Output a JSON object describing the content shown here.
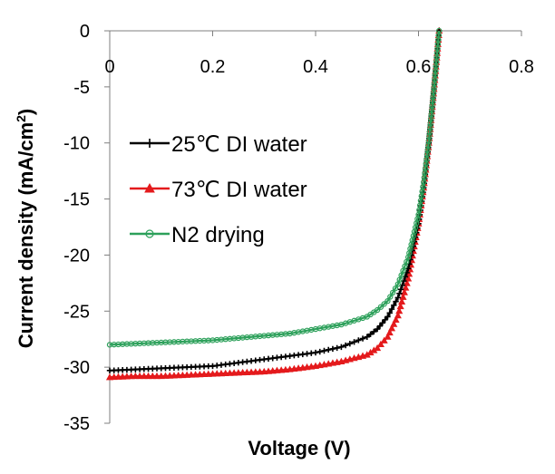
{
  "chart_data": {
    "type": "line",
    "title": "",
    "xlabel": "Voltage (V)",
    "ylabel_main": "Current density",
    "ylabel_unit": "(mA/cm",
    "ylabel_sup": "2",
    "ylabel_close": ")",
    "xlim": [
      0,
      0.8
    ],
    "ylim": [
      -35,
      0
    ],
    "x_ticks": [
      0,
      0.2,
      0.4,
      0.6,
      0.8
    ],
    "x_tick_labels": [
      "0",
      "0.2",
      "0.4",
      "0.6",
      "0.8"
    ],
    "y_ticks": [
      0,
      -5,
      -10,
      -15,
      -20,
      -25,
      -30,
      -35
    ],
    "y_tick_labels": [
      "0",
      "-5",
      "-10",
      "-15",
      "-20",
      "-25",
      "-30",
      "-35"
    ],
    "x_axis_position": "top",
    "grid": false,
    "legend_position": "center-left",
    "series": [
      {
        "name": "25℃ DI water",
        "color": "#000000",
        "marker": "plus",
        "x": [
          0,
          0.05,
          0.1,
          0.15,
          0.2,
          0.25,
          0.3,
          0.35,
          0.4,
          0.45,
          0.5,
          0.52,
          0.54,
          0.56,
          0.58,
          0.6,
          0.61,
          0.62,
          0.63,
          0.64
        ],
        "y": [
          -30.3,
          -30.2,
          -30.1,
          -30.0,
          -29.9,
          -29.6,
          -29.3,
          -29.0,
          -28.7,
          -28.2,
          -27.3,
          -26.6,
          -25.5,
          -23.8,
          -21.2,
          -17.2,
          -14.0,
          -10.0,
          -5.2,
          0
        ]
      },
      {
        "name": "73℃ DI water",
        "color": "#e41a1c",
        "marker": "triangle",
        "x": [
          0,
          0.05,
          0.1,
          0.15,
          0.2,
          0.25,
          0.3,
          0.35,
          0.4,
          0.45,
          0.5,
          0.52,
          0.54,
          0.56,
          0.58,
          0.6,
          0.61,
          0.62,
          0.63,
          0.64
        ],
        "y": [
          -30.9,
          -30.8,
          -30.8,
          -30.7,
          -30.6,
          -30.5,
          -30.4,
          -30.2,
          -29.9,
          -29.5,
          -28.9,
          -28.3,
          -27.3,
          -25.4,
          -22.1,
          -17.2,
          -14.0,
          -10.0,
          -5.2,
          0
        ]
      },
      {
        "name": "N2 drying",
        "color": "#2ca05a",
        "marker": "circle",
        "x": [
          0,
          0.05,
          0.1,
          0.15,
          0.2,
          0.25,
          0.3,
          0.35,
          0.4,
          0.45,
          0.5,
          0.52,
          0.54,
          0.56,
          0.58,
          0.6,
          0.61,
          0.62,
          0.63,
          0.64
        ],
        "y": [
          -28.0,
          -27.9,
          -27.8,
          -27.7,
          -27.6,
          -27.4,
          -27.2,
          -27.0,
          -26.6,
          -26.2,
          -25.5,
          -24.9,
          -24.1,
          -22.6,
          -20.2,
          -16.4,
          -13.5,
          -9.8,
          -5.1,
          0
        ]
      }
    ]
  }
}
